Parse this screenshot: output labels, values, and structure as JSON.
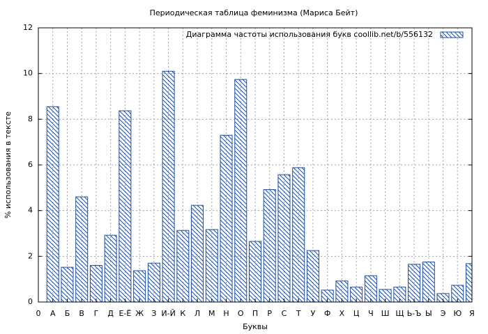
{
  "chart_data": {
    "type": "bar",
    "title": "Периодическая таблица феминизма (Мариса Бейт)",
    "x_label": "Буквы",
    "y_label": "% использования в тексте",
    "categories": [
      "0",
      "А",
      "Б",
      "В",
      "Г",
      "Д",
      "Е-Ё",
      "Ж",
      "З",
      "И-Й",
      "К",
      "Л",
      "М",
      "Н",
      "О",
      "П",
      "Р",
      "С",
      "Т",
      "У",
      "Ф",
      "Х",
      "Ц",
      "Ч",
      "Ш",
      "Щ",
      "Ь-Ъ",
      "Ы",
      "Э",
      "Ю",
      "Я"
    ],
    "series": [
      {
        "name": "Диаграмма частоты использования букв  coollib.net/b/556132",
        "color": "#1f4e9e",
        "values": [
          null,
          8.55,
          1.52,
          4.6,
          1.6,
          2.92,
          8.37,
          1.37,
          1.7,
          10.1,
          3.13,
          4.23,
          3.17,
          7.3,
          9.74,
          2.65,
          4.92,
          5.57,
          5.88,
          2.25,
          0.52,
          0.92,
          0.65,
          1.15,
          0.55,
          0.65,
          1.65,
          1.75,
          0.37,
          0.73,
          1.68
        ]
      }
    ],
    "ylim": [
      0,
      12
    ],
    "yticks": [
      0,
      2,
      4,
      6,
      8,
      10,
      12
    ],
    "grid": true,
    "legend": "top-right"
  }
}
